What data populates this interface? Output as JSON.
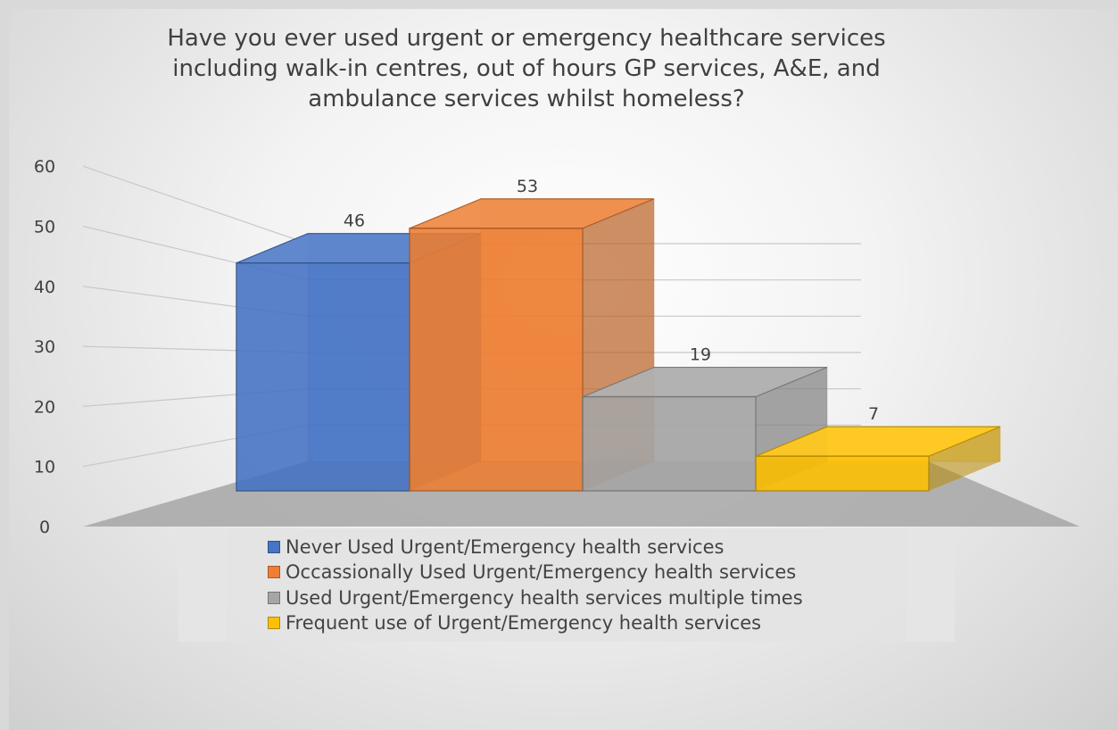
{
  "chart_data": {
    "type": "bar",
    "title": "Have you ever used urgent or emergency healthcare services including walk-in centres, out of hours GP services, A&E, and ambulance services whilst homeless?",
    "style": "3d-perspective",
    "ylim": [
      0,
      60
    ],
    "yticks": [
      "0",
      "10",
      "20",
      "30",
      "40",
      "50",
      "60"
    ],
    "grid": true,
    "legend_position": "bottom",
    "series": [
      {
        "name": "Never Used Urgent/Emergency health services",
        "value": 46,
        "label": "46",
        "color": "#4472C4"
      },
      {
        "name": "Occassionally Used Urgent/Emergency health services",
        "value": 53,
        "label": "53",
        "color": "#ED7D31"
      },
      {
        "name": "Used Urgent/Emergency health services multiple times",
        "value": 19,
        "label": "19",
        "color": "#A5A5A5"
      },
      {
        "name": "Frequent use of Urgent/Emergency health services",
        "value": 7,
        "label": "7",
        "color": "#FFC000"
      }
    ]
  }
}
